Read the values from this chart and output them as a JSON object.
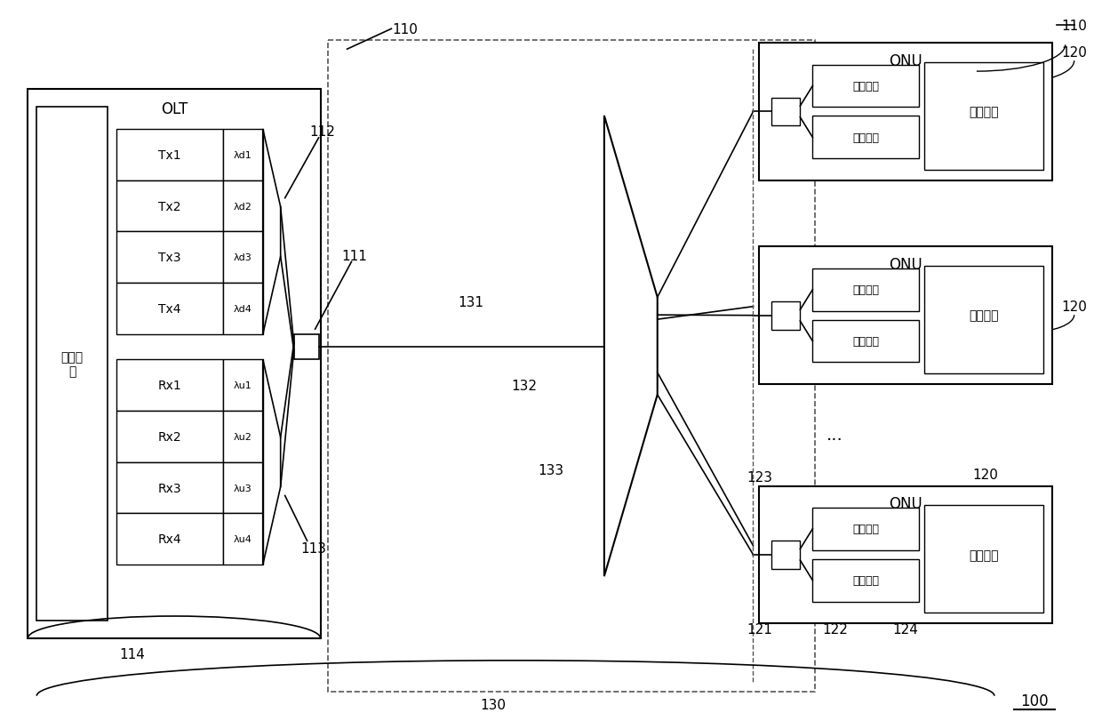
{
  "bg_color": "#ffffff",
  "line_color": "#000000",
  "fig_width": 12.4,
  "fig_height": 8.12,
  "dpi": 100,
  "font_size": 10,
  "small_font": 8,
  "olt_label": "OLT",
  "proc_label": "处理模\n块",
  "tx_labels": [
    "Tx1",
    "Tx2",
    "Tx3",
    "Tx4"
  ],
  "rx_labels": [
    "Rx1",
    "Rx2",
    "Rx3",
    "Rx4"
  ],
  "td_labels": [
    "λd1",
    "λd2",
    "λd3",
    "λd4"
  ],
  "tu_labels": [
    "λu1",
    "λu2",
    "λu3",
    "λu4"
  ],
  "onu_label": "ONU",
  "transmitter_label": "光发射器",
  "receiver_label": "光接收器",
  "proc_block_label": "处理模块",
  "ellipsis": "...",
  "ref_label": "100",
  "labels": {
    "110": "110",
    "111": "111",
    "112": "112",
    "113": "113",
    "114": "114",
    "120": "120",
    "121": "121",
    "122": "122",
    "123": "123",
    "124": "124",
    "130": "130",
    "131": "131",
    "132": "132",
    "133": "133"
  }
}
